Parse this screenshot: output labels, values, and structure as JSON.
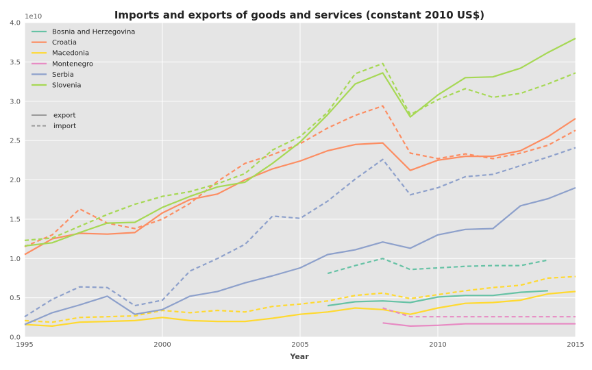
{
  "chart_data": {
    "type": "line",
    "title": "Imports and exports of goods and services (constant 2010 US$)",
    "xlabel": "Year",
    "ylabel": "",
    "offset_label": "1e10",
    "xlim": [
      1995,
      2015
    ],
    "ylim": [
      0,
      4.0
    ],
    "x_ticks": [
      "1995",
      "2000",
      "2005",
      "2010",
      "2015"
    ],
    "y_ticks": [
      "0.0",
      "0.5",
      "1.0",
      "1.5",
      "2.0",
      "2.5",
      "3.0",
      "3.5",
      "4.0"
    ],
    "grid": true,
    "legend_placement": "top-left",
    "style_legend": [
      {
        "label": "export",
        "dash": "solid"
      },
      {
        "label": "import",
        "dash": "dashed"
      }
    ],
    "series": [
      {
        "name": "Bosnia and Herzegovina",
        "color": "#66c2a5",
        "export": {
          "x": [
            2006,
            2007,
            2008,
            2009,
            2010,
            2011,
            2012,
            2013,
            2014
          ],
          "y": [
            0.4,
            0.45,
            0.46,
            0.44,
            0.51,
            0.53,
            0.53,
            0.57,
            0.59
          ]
        },
        "import": {
          "x": [
            2006,
            2007,
            2008,
            2009,
            2010,
            2011,
            2012,
            2013,
            2014
          ],
          "y": [
            0.81,
            0.91,
            1.0,
            0.86,
            0.88,
            0.9,
            0.91,
            0.91,
            0.98
          ]
        }
      },
      {
        "name": "Croatia",
        "color": "#fc8d62",
        "export": {
          "x": [
            1995,
            1996,
            1997,
            1998,
            1999,
            2000,
            2001,
            2002,
            2003,
            2004,
            2005,
            2006,
            2007,
            2008,
            2009,
            2010,
            2011,
            2012,
            2013,
            2014,
            2015
          ],
          "y": [
            1.05,
            1.25,
            1.32,
            1.31,
            1.33,
            1.58,
            1.75,
            1.82,
            2.0,
            2.14,
            2.24,
            2.37,
            2.45,
            2.47,
            2.12,
            2.25,
            2.3,
            2.3,
            2.37,
            2.55,
            2.78
          ]
        },
        "import": {
          "x": [
            1995,
            1996,
            1997,
            1998,
            1999,
            2000,
            2001,
            2002,
            2003,
            2004,
            2005,
            2006,
            2007,
            2008,
            2009,
            2010,
            2011,
            2012,
            2013,
            2014,
            2015
          ],
          "y": [
            1.15,
            1.3,
            1.63,
            1.45,
            1.38,
            1.5,
            1.7,
            1.98,
            2.21,
            2.32,
            2.46,
            2.66,
            2.82,
            2.94,
            2.34,
            2.27,
            2.33,
            2.27,
            2.34,
            2.44,
            2.63
          ]
        }
      },
      {
        "name": "Macedonia",
        "color": "#ffd92f",
        "export": {
          "x": [
            1995,
            1996,
            1997,
            1998,
            1999,
            2000,
            2001,
            2002,
            2003,
            2004,
            2005,
            2006,
            2007,
            2008,
            2009,
            2010,
            2011,
            2012,
            2013,
            2014,
            2015
          ],
          "y": [
            0.16,
            0.14,
            0.19,
            0.2,
            0.21,
            0.25,
            0.21,
            0.2,
            0.2,
            0.24,
            0.29,
            0.32,
            0.37,
            0.35,
            0.29,
            0.37,
            0.43,
            0.44,
            0.47,
            0.55,
            0.58
          ]
        },
        "import": {
          "x": [
            1995,
            1996,
            1997,
            1998,
            1999,
            2000,
            2001,
            2002,
            2003,
            2004,
            2005,
            2006,
            2007,
            2008,
            2009,
            2010,
            2011,
            2012,
            2013,
            2014,
            2015
          ],
          "y": [
            0.21,
            0.19,
            0.25,
            0.26,
            0.27,
            0.34,
            0.31,
            0.34,
            0.32,
            0.39,
            0.42,
            0.46,
            0.53,
            0.56,
            0.49,
            0.54,
            0.59,
            0.63,
            0.66,
            0.75,
            0.77
          ]
        }
      },
      {
        "name": "Montenegro",
        "color": "#e78ac3",
        "export": {
          "x": [
            2008,
            2009,
            2010,
            2011,
            2012,
            2013,
            2014,
            2015
          ],
          "y": [
            0.18,
            0.14,
            0.15,
            0.17,
            0.17,
            0.17,
            0.17,
            0.17
          ]
        },
        "import": {
          "x": [
            2008,
            2009,
            2010,
            2011,
            2012,
            2013,
            2014,
            2015
          ],
          "y": [
            0.37,
            0.26,
            0.26,
            0.26,
            0.26,
            0.26,
            0.26,
            0.26
          ]
        }
      },
      {
        "name": "Serbia",
        "color": "#8da0cb",
        "export": {
          "x": [
            1995,
            1996,
            1997,
            1998,
            1999,
            2000,
            2001,
            2002,
            2003,
            2004,
            2005,
            2006,
            2007,
            2008,
            2009,
            2010,
            2011,
            2012,
            2013,
            2014,
            2015
          ],
          "y": [
            0.16,
            0.31,
            0.41,
            0.52,
            0.29,
            0.35,
            0.52,
            0.58,
            0.69,
            0.78,
            0.88,
            1.05,
            1.11,
            1.21,
            1.13,
            1.3,
            1.37,
            1.38,
            1.67,
            1.76,
            1.9
          ]
        },
        "import": {
          "x": [
            1995,
            1996,
            1997,
            1998,
            1999,
            2000,
            2001,
            2002,
            2003,
            2004,
            2005,
            2006,
            2007,
            2008,
            2009,
            2010,
            2011,
            2012,
            2013,
            2014,
            2015
          ],
          "y": [
            0.26,
            0.48,
            0.64,
            0.63,
            0.4,
            0.47,
            0.84,
            1.0,
            1.18,
            1.54,
            1.51,
            1.73,
            2.01,
            2.26,
            1.81,
            1.9,
            2.04,
            2.07,
            2.18,
            2.29,
            2.41
          ]
        }
      },
      {
        "name": "Slovenia",
        "color": "#a6d854",
        "export": {
          "x": [
            1995,
            1996,
            1997,
            1998,
            1999,
            2000,
            2001,
            2002,
            2003,
            2004,
            2005,
            2006,
            2007,
            2008,
            2009,
            2010,
            2011,
            2012,
            2013,
            2014,
            2015
          ],
          "y": [
            1.16,
            1.2,
            1.33,
            1.45,
            1.46,
            1.65,
            1.79,
            1.91,
            1.97,
            2.21,
            2.48,
            2.83,
            3.22,
            3.36,
            2.8,
            3.08,
            3.3,
            3.31,
            3.42,
            3.62,
            3.8
          ]
        },
        "import": {
          "x": [
            1995,
            1996,
            1997,
            1998,
            1999,
            2000,
            2001,
            2002,
            2003,
            2004,
            2005,
            2006,
            2007,
            2008,
            2009,
            2010,
            2011,
            2012,
            2013,
            2014,
            2015
          ],
          "y": [
            1.23,
            1.26,
            1.41,
            1.56,
            1.69,
            1.79,
            1.85,
            1.95,
            2.08,
            2.38,
            2.55,
            2.86,
            3.35,
            3.48,
            2.83,
            3.02,
            3.16,
            3.05,
            3.1,
            3.22,
            3.36
          ]
        }
      }
    ]
  }
}
